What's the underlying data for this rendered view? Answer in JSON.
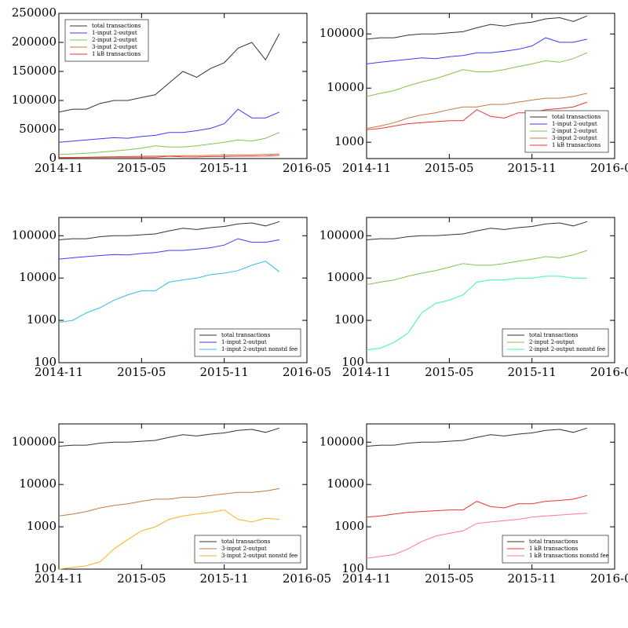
{
  "chart_data": [
    {
      "type": "line",
      "log": false,
      "legend": "upper left",
      "x": [
        "2014-11",
        "2014-12",
        "2015-01",
        "2015-02",
        "2015-03",
        "2015-04",
        "2015-05",
        "2015-06",
        "2015-07",
        "2015-08",
        "2015-09",
        "2015-10",
        "2015-11",
        "2015-12",
        "2016-01",
        "2016-02",
        "2016-03"
      ],
      "xlim": [
        "2014-11",
        "2016-05"
      ],
      "xticks": [
        "2014-11",
        "2015-05",
        "2015-11",
        "2016-05"
      ],
      "ylim": [
        0,
        250000
      ],
      "yticks": [
        0,
        50000,
        100000,
        150000,
        200000,
        250000
      ],
      "series": [
        {
          "name": "total transactions",
          "color": "#333333",
          "values": [
            80000,
            85000,
            85000,
            95000,
            100000,
            100000,
            105000,
            110000,
            130000,
            150000,
            140000,
            155000,
            165000,
            190000,
            200000,
            170000,
            215000
          ]
        },
        {
          "name": "1-input 2-output",
          "color": "#3a3aff",
          "values": [
            28000,
            30000,
            32000,
            34000,
            36000,
            35000,
            38000,
            40000,
            45000,
            45000,
            48000,
            52000,
            60000,
            85000,
            70000,
            70000,
            80000
          ]
        },
        {
          "name": "2-input 2-output",
          "color": "#84c150",
          "values": [
            7000,
            8000,
            9000,
            11000,
            13000,
            15000,
            18000,
            22000,
            20000,
            20000,
            22000,
            25000,
            28000,
            32000,
            30000,
            35000,
            45000
          ]
        },
        {
          "name": "3-input 2-output",
          "color": "#c47a3c",
          "values": [
            1800,
            2000,
            2300,
            2800,
            3200,
            3500,
            4000,
            4500,
            4500,
            5000,
            5000,
            5500,
            6000,
            6500,
            6500,
            7000,
            8000
          ]
        },
        {
          "name": "1 kB transactions",
          "color": "#ee3333",
          "values": [
            1700,
            1800,
            2000,
            2200,
            2300,
            2400,
            2500,
            2500,
            4000,
            3000,
            2800,
            3500,
            3500,
            4000,
            4200,
            4500,
            5500
          ]
        }
      ]
    },
    {
      "type": "line",
      "log": true,
      "legend": "lower right",
      "x": [
        "2014-11",
        "2014-12",
        "2015-01",
        "2015-02",
        "2015-03",
        "2015-04",
        "2015-05",
        "2015-06",
        "2015-07",
        "2015-08",
        "2015-09",
        "2015-10",
        "2015-11",
        "2015-12",
        "2016-01",
        "2016-02",
        "2016-03"
      ],
      "xlim": [
        "2014-11",
        "2016-05"
      ],
      "xticks": [
        "2014-11",
        "2015-05",
        "2015-11",
        "2016-05"
      ],
      "ylim": [
        500,
        240000
      ],
      "yticks": [
        1000,
        10000,
        100000
      ],
      "series": [
        {
          "name": "total transactions",
          "color": "#333333",
          "values": [
            80000,
            85000,
            85000,
            95000,
            100000,
            100000,
            105000,
            110000,
            130000,
            150000,
            140000,
            155000,
            165000,
            190000,
            200000,
            170000,
            215000
          ]
        },
        {
          "name": "1-input 2-output",
          "color": "#3a3aff",
          "values": [
            28000,
            30000,
            32000,
            34000,
            36000,
            35000,
            38000,
            40000,
            45000,
            45000,
            48000,
            52000,
            60000,
            85000,
            70000,
            70000,
            80000
          ]
        },
        {
          "name": "2-input 2-output",
          "color": "#84c150",
          "values": [
            7000,
            8000,
            9000,
            11000,
            13000,
            15000,
            18000,
            22000,
            20000,
            20000,
            22000,
            25000,
            28000,
            32000,
            30000,
            35000,
            45000
          ]
        },
        {
          "name": "3-input 2-output",
          "color": "#c47a3c",
          "values": [
            1800,
            2000,
            2300,
            2800,
            3200,
            3500,
            4000,
            4500,
            4500,
            5000,
            5000,
            5500,
            6000,
            6500,
            6500,
            7000,
            8000
          ]
        },
        {
          "name": "1 kB transactions",
          "color": "#ee3333",
          "values": [
            1700,
            1800,
            2000,
            2200,
            2300,
            2400,
            2500,
            2500,
            4000,
            3000,
            2800,
            3500,
            3500,
            4000,
            4200,
            4500,
            5500
          ]
        }
      ]
    },
    {
      "type": "line",
      "log": true,
      "legend": "lower right",
      "x": [
        "2014-11",
        "2014-12",
        "2015-01",
        "2015-02",
        "2015-03",
        "2015-04",
        "2015-05",
        "2015-06",
        "2015-07",
        "2015-08",
        "2015-09",
        "2015-10",
        "2015-11",
        "2015-12",
        "2016-01",
        "2016-02",
        "2016-03"
      ],
      "xlim": [
        "2014-11",
        "2016-05"
      ],
      "xticks": [
        "2014-11",
        "2015-05",
        "2015-11",
        "2016-05"
      ],
      "ylim": [
        100,
        270000
      ],
      "yticks": [
        100,
        1000,
        10000,
        100000
      ],
      "series": [
        {
          "name": "total transactions",
          "color": "#333333",
          "values": [
            80000,
            85000,
            85000,
            95000,
            100000,
            100000,
            105000,
            110000,
            130000,
            150000,
            140000,
            155000,
            165000,
            190000,
            200000,
            170000,
            215000
          ]
        },
        {
          "name": "1-input 2-output",
          "color": "#3a3aff",
          "values": [
            28000,
            30000,
            32000,
            34000,
            36000,
            35000,
            38000,
            40000,
            45000,
            45000,
            48000,
            52000,
            60000,
            85000,
            70000,
            70000,
            80000
          ]
        },
        {
          "name": "1-input 2-output nonstd fee",
          "color": "#33bbee",
          "values": [
            900,
            1000,
            1500,
            2000,
            3000,
            4000,
            5000,
            5000,
            8000,
            9000,
            10000,
            12000,
            13000,
            15000,
            20000,
            25000,
            14000
          ]
        }
      ]
    },
    {
      "type": "line",
      "log": true,
      "legend": "lower right",
      "x": [
        "2014-11",
        "2014-12",
        "2015-01",
        "2015-02",
        "2015-03",
        "2015-04",
        "2015-05",
        "2015-06",
        "2015-07",
        "2015-08",
        "2015-09",
        "2015-10",
        "2015-11",
        "2015-12",
        "2016-01",
        "2016-02",
        "2016-03"
      ],
      "xlim": [
        "2014-11",
        "2016-05"
      ],
      "xticks": [
        "2014-11",
        "2015-05",
        "2015-11",
        "2016-05"
      ],
      "ylim": [
        100,
        270000
      ],
      "yticks": [
        100,
        1000,
        10000,
        100000
      ],
      "series": [
        {
          "name": "total transactions",
          "color": "#333333",
          "values": [
            80000,
            85000,
            85000,
            95000,
            100000,
            100000,
            105000,
            110000,
            130000,
            150000,
            140000,
            155000,
            165000,
            190000,
            200000,
            170000,
            215000
          ]
        },
        {
          "name": "2-input 2-output",
          "color": "#84c150",
          "values": [
            7000,
            8000,
            9000,
            11000,
            13000,
            15000,
            18000,
            22000,
            20000,
            20000,
            22000,
            25000,
            28000,
            32000,
            30000,
            35000,
            45000
          ]
        },
        {
          "name": "2-input 2-output nonstd fee",
          "color": "#33ff99",
          "values": [
            200,
            220,
            300,
            500,
            1500,
            2500,
            3000,
            4000,
            8000,
            9000,
            9000,
            10000,
            10000,
            11000,
            11000,
            10000,
            10000
          ]
        }
      ]
    },
    {
      "type": "line",
      "log": true,
      "legend": "lower right",
      "x": [
        "2014-11",
        "2014-12",
        "2015-01",
        "2015-02",
        "2015-03",
        "2015-04",
        "2015-05",
        "2015-06",
        "2015-07",
        "2015-08",
        "2015-09",
        "2015-10",
        "2015-11",
        "2015-12",
        "2016-01",
        "2016-02",
        "2016-03"
      ],
      "xlim": [
        "2014-11",
        "2016-05"
      ],
      "xticks": [
        "2014-11",
        "2015-05",
        "2015-11",
        "2016-05"
      ],
      "ylim": [
        100,
        270000
      ],
      "yticks": [
        100,
        1000,
        10000,
        100000
      ],
      "series": [
        {
          "name": "total transactions",
          "color": "#333333",
          "values": [
            80000,
            85000,
            85000,
            95000,
            100000,
            100000,
            105000,
            110000,
            130000,
            150000,
            140000,
            155000,
            165000,
            190000,
            200000,
            170000,
            215000
          ]
        },
        {
          "name": "3-input 2-output",
          "color": "#c47a3c",
          "values": [
            1800,
            2000,
            2300,
            2800,
            3200,
            3500,
            4000,
            4500,
            4500,
            5000,
            5000,
            5500,
            6000,
            6500,
            6500,
            7000,
            8000
          ]
        },
        {
          "name": "3-input 2-output nonstd fee",
          "color": "#ffb020",
          "values": [
            100,
            110,
            120,
            150,
            300,
            500,
            800,
            1000,
            1500,
            1800,
            2000,
            2200,
            2500,
            1500,
            1300,
            1600,
            1500
          ]
        }
      ]
    },
    {
      "type": "line",
      "log": true,
      "legend": "lower right",
      "x": [
        "2014-11",
        "2014-12",
        "2015-01",
        "2015-02",
        "2015-03",
        "2015-04",
        "2015-05",
        "2015-06",
        "2015-07",
        "2015-08",
        "2015-09",
        "2015-10",
        "2015-11",
        "2015-12",
        "2016-01",
        "2016-02",
        "2016-03"
      ],
      "xlim": [
        "2014-11",
        "2016-05"
      ],
      "xticks": [
        "2014-11",
        "2015-05",
        "2015-11",
        "2016-05"
      ],
      "ylim": [
        100,
        270000
      ],
      "yticks": [
        100,
        1000,
        10000,
        100000
      ],
      "series": [
        {
          "name": "total transactions",
          "color": "#333333",
          "values": [
            80000,
            85000,
            85000,
            95000,
            100000,
            100000,
            105000,
            110000,
            130000,
            150000,
            140000,
            155000,
            165000,
            190000,
            200000,
            170000,
            215000
          ]
        },
        {
          "name": "1 kB transactions",
          "color": "#ee3333",
          "values": [
            1700,
            1800,
            2000,
            2200,
            2300,
            2400,
            2500,
            2500,
            4000,
            3000,
            2800,
            3500,
            3500,
            4000,
            4200,
            4500,
            5500
          ]
        },
        {
          "name": "1 kB transactions nonstd fee",
          "color": "#ff7799",
          "values": [
            180,
            200,
            220,
            300,
            450,
            600,
            700,
            800,
            1200,
            1300,
            1400,
            1500,
            1700,
            1800,
            1900,
            2000,
            2100
          ]
        }
      ]
    }
  ]
}
